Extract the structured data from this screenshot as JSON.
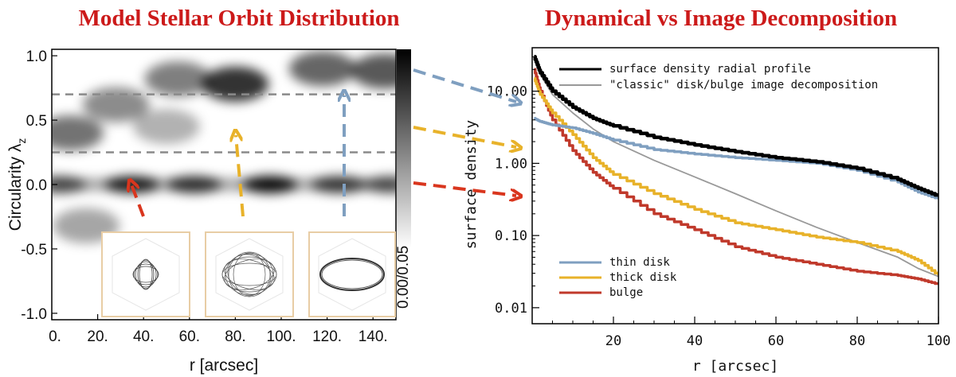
{
  "chart_data": [
    {
      "type": "heatmap",
      "title": "Model Stellar Orbit Distribution",
      "xlabel": "r [arcsec]",
      "ylabel": "Circularity λ",
      "ylabel_sub": "z",
      "xlim": [
        0,
        150
      ],
      "ylim": [
        -1.05,
        1.05
      ],
      "x_ticks": [
        0,
        20,
        40,
        60,
        80,
        100,
        120,
        140
      ],
      "x_tick_labels": [
        "0.",
        "20.",
        "40.",
        "60.",
        "80.",
        "100.",
        "120.",
        "140."
      ],
      "y_ticks": [
        1.0,
        0.5,
        0.0,
        -0.5,
        -1.0
      ],
      "y_tick_labels": [
        "1.0",
        "0.5",
        "0.0",
        "-0.5",
        "-1.0"
      ],
      "colorbar_label": "0.00/0.05",
      "colormap": "gray_r",
      "divider_lines": [
        0.7,
        0.25
      ],
      "density_blobs": [
        {
          "r": 3,
          "lz": 0.0,
          "w": 0.62
        },
        {
          "r": 35,
          "lz": 0.0,
          "w": 0.85
        },
        {
          "r": 62,
          "lz": 0.0,
          "w": 0.75
        },
        {
          "r": 95,
          "lz": 0.0,
          "w": 0.95
        },
        {
          "r": 125,
          "lz": 0.0,
          "w": 0.7
        },
        {
          "r": 148,
          "lz": 0.0,
          "w": 0.6
        },
        {
          "r": 8,
          "lz": 0.4,
          "w": 0.55
        },
        {
          "r": 28,
          "lz": 0.62,
          "w": 0.45
        },
        {
          "r": 55,
          "lz": 0.82,
          "w": 0.5
        },
        {
          "r": 80,
          "lz": 0.78,
          "w": 0.8
        },
        {
          "r": 118,
          "lz": 0.9,
          "w": 0.6
        },
        {
          "r": 145,
          "lz": 0.88,
          "w": 0.65
        },
        {
          "r": 15,
          "lz": -0.32,
          "w": 0.35
        },
        {
          "r": 50,
          "lz": 0.45,
          "w": 0.3
        }
      ],
      "arrow_colors": {
        "red": "#d9361e",
        "yellow": "#e8b22a",
        "blue": "#7f9fc0"
      }
    },
    {
      "type": "line",
      "title": "Dynamical vs Image Decomposition",
      "xlabel": "r [arcsec]",
      "ylabel": "surface density",
      "xlim": [
        0,
        100
      ],
      "ylim": [
        0.006,
        40
      ],
      "yscale": "log",
      "x_ticks": [
        20,
        40,
        60,
        80,
        100
      ],
      "x_tick_labels": [
        "20",
        "40",
        "60",
        "80",
        "100"
      ],
      "y_ticks": [
        10,
        1,
        0.1,
        0.01
      ],
      "y_tick_labels": [
        "10.00",
        "1.00",
        "0.10",
        "0.01"
      ],
      "x": [
        0.5,
        2,
        5,
        10,
        15,
        20,
        30,
        40,
        50,
        60,
        70,
        80,
        90,
        95,
        100
      ],
      "series": [
        {
          "name": "surface density radial profile",
          "color": "#000000",
          "y": [
            30,
            18,
            10,
            6,
            4.2,
            3.3,
            2.3,
            1.8,
            1.45,
            1.2,
            1.05,
            0.85,
            0.6,
            0.45,
            0.35
          ]
        },
        {
          "name": "\"classic\" disk/bulge image decomposition",
          "color": "#999999",
          "y": [
            28,
            17,
            9,
            5,
            3,
            2,
            1.1,
            0.65,
            0.38,
            0.22,
            0.13,
            0.08,
            0.05,
            0.035,
            0.027
          ]
        },
        {
          "name": "thin disk",
          "color": "#7f9fc0",
          "y": [
            4.2,
            3.8,
            3.4,
            3.1,
            2.6,
            2.1,
            1.55,
            1.35,
            1.2,
            1.1,
            1.0,
            0.8,
            0.55,
            0.4,
            0.32
          ]
        },
        {
          "name": "thick disk",
          "color": "#e8b22a",
          "y": [
            15,
            9,
            5,
            2.5,
            1.2,
            0.7,
            0.38,
            0.23,
            0.15,
            0.12,
            0.095,
            0.08,
            0.06,
            0.045,
            0.028
          ]
        },
        {
          "name": "bulge",
          "color": "#c0392b",
          "y": [
            20,
            10,
            4,
            1.5,
            0.75,
            0.45,
            0.2,
            0.12,
            0.07,
            0.05,
            0.04,
            0.032,
            0.028,
            0.025,
            0.021
          ]
        }
      ],
      "legend_top": [
        "surface density radial profile",
        "\"classic\" disk/bulge image decomposition"
      ],
      "legend_bottom": [
        "thin disk",
        "thick disk",
        "bulge"
      ]
    }
  ]
}
